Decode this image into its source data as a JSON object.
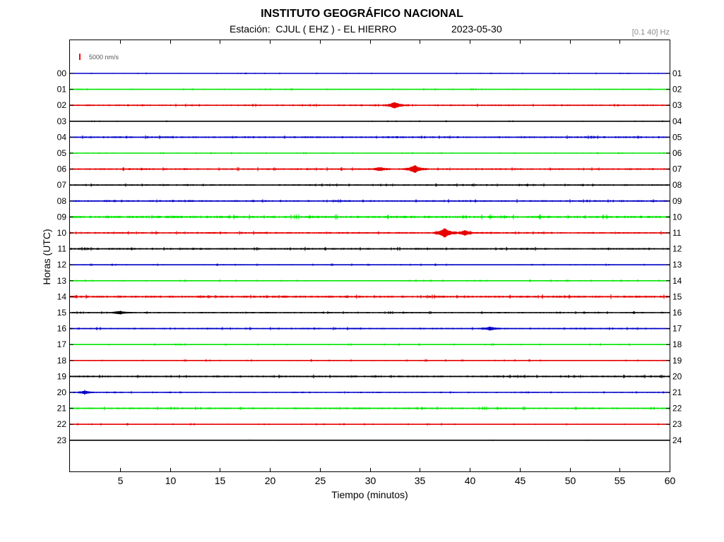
{
  "chart_data": {
    "type": "line",
    "title": "INSTITUTO GEOGRÁFICO NACIONAL",
    "station_label": "Estación:  CJUL ( EHZ ) - EL HIERRO",
    "date": "2023-05-30",
    "filter_band": "[0.1 40] Hz",
    "xlabel": "Tiempo (minutos)",
    "ylabel": "Horas (UTC)",
    "scale_label": "5000 nm/s",
    "scale_color": "#ff0000",
    "xlim": [
      0,
      60
    ],
    "x_ticks": [
      "5",
      "10",
      "15",
      "20",
      "25",
      "30",
      "35",
      "40",
      "45",
      "50",
      "55",
      "60"
    ],
    "left_hour_labels": [
      "00",
      "01",
      "02",
      "03",
      "04",
      "05",
      "06",
      "07",
      "08",
      "09",
      "10",
      "11",
      "12",
      "13",
      "14",
      "15",
      "16",
      "17",
      "18",
      "19",
      "20",
      "21",
      "22",
      "23"
    ],
    "right_hour_labels": [
      "01",
      "02",
      "03",
      "04",
      "05",
      "06",
      "07",
      "08",
      "09",
      "10",
      "11",
      "12",
      "13",
      "14",
      "15",
      "16",
      "17",
      "18",
      "19",
      "20",
      "21",
      "22",
      "23",
      "24"
    ],
    "series_colors": [
      "#0000c8",
      "#00e600",
      "#e60000",
      "#000000"
    ],
    "noise_levels": [
      0.4,
      0.5,
      0.8,
      0.4,
      0.9,
      0.5,
      0.9,
      0.8,
      0.9,
      1.2,
      0.9,
      0.9,
      0.6,
      0.6,
      1.1,
      0.7,
      0.8,
      0.6,
      0.6,
      0.9,
      0.6,
      0.9,
      0.6,
      0.3
    ],
    "events": [
      {
        "hour": 2,
        "minute": 32.5,
        "amplitude": 4
      },
      {
        "hour": 6,
        "minute": 34.5,
        "amplitude": 5
      },
      {
        "hour": 6,
        "minute": 31.0,
        "amplitude": 2
      },
      {
        "hour": 10,
        "minute": 37.5,
        "amplitude": 6
      },
      {
        "hour": 10,
        "minute": 39.5,
        "amplitude": 3
      },
      {
        "hour": 15,
        "minute": 5.0,
        "amplitude": 2
      },
      {
        "hour": 16,
        "minute": 42.0,
        "amplitude": 2
      },
      {
        "hour": 20,
        "minute": 1.5,
        "amplitude": 2
      }
    ]
  }
}
